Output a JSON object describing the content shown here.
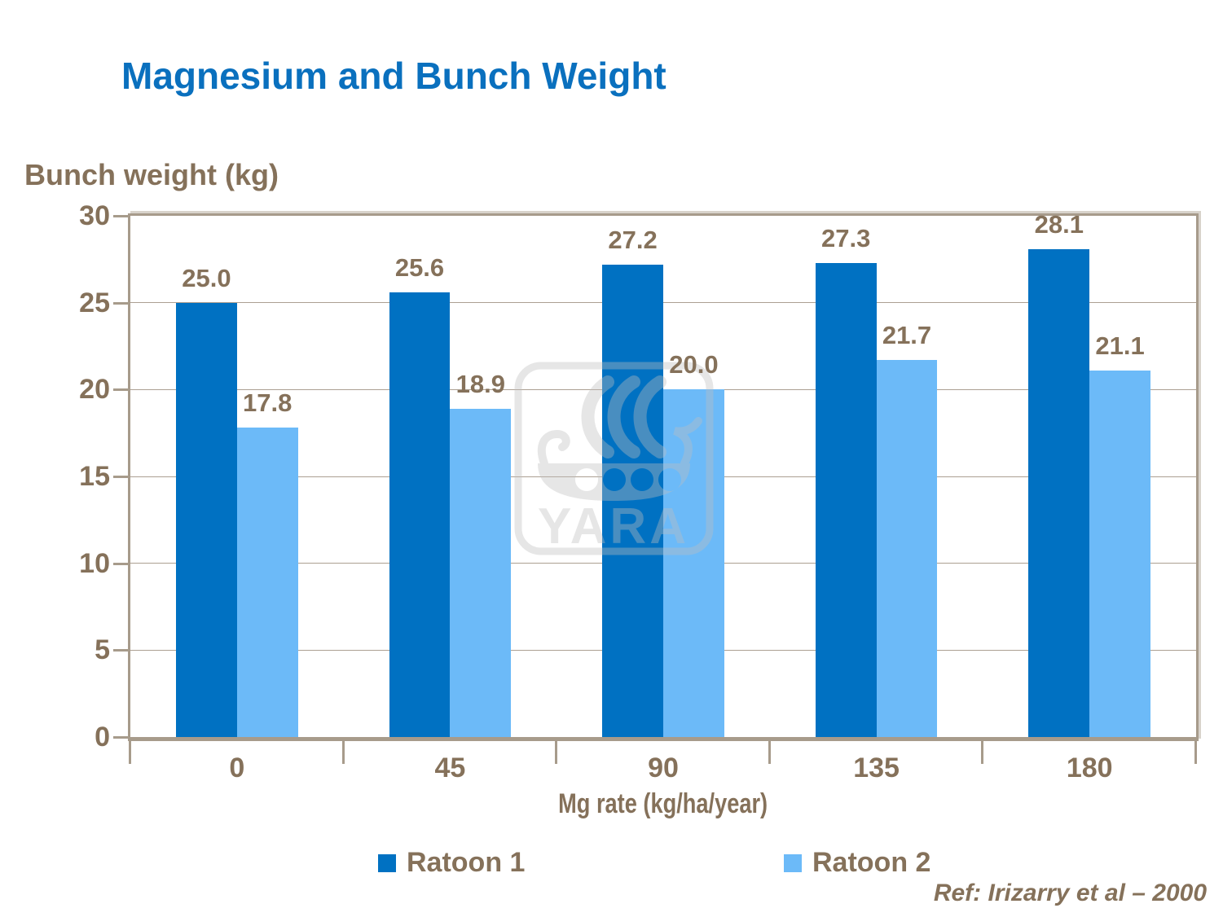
{
  "slide": {
    "title": "Magnesium and Bunch Weight",
    "reference": "Ref: Irizarry et al – 2000",
    "watermark_text": "YARA"
  },
  "colors": {
    "title_blue": "#0A70BE",
    "text_brown": "#85715A",
    "axis_line": "#A79B8B",
    "gridline": "#ACA092",
    "series1_blue": "#0071C2",
    "series2_light_blue": "#6CBAF8",
    "watermark_gray": "#BFBFBF"
  },
  "chart_data": {
    "type": "bar",
    "title": "Magnesium and Bunch Weight",
    "y_axis_title": "Bunch weight (kg)",
    "x_axis_title": "Mg rate (kg/ha/year)",
    "categories": [
      "0",
      "45",
      "90",
      "135",
      "180"
    ],
    "series": [
      {
        "name": "Ratoon 1",
        "color": "#0071C2",
        "values": [
          25.0,
          25.6,
          27.2,
          27.3,
          28.1
        ]
      },
      {
        "name": "Ratoon 2",
        "color": "#6CBAF8",
        "values": [
          17.8,
          18.9,
          20.0,
          21.7,
          21.1
        ]
      }
    ],
    "ylim": [
      0,
      30
    ],
    "yticks": [
      0,
      5,
      10,
      15,
      20,
      25,
      30
    ],
    "grid": true,
    "data_labels": true,
    "data_label_decimals": 1,
    "legend_position": "bottom"
  }
}
